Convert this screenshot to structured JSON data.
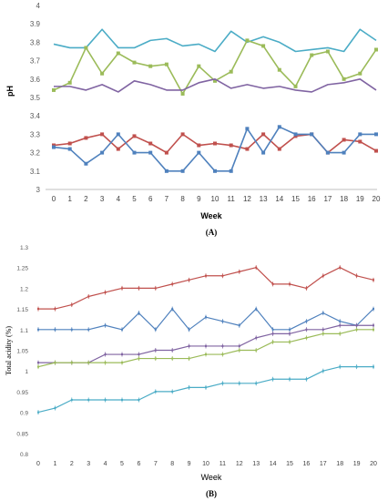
{
  "chart_data": [
    {
      "id": "A",
      "type": "line",
      "panel_label": "(A)",
      "xlabel": "Week",
      "ylabel": "pH",
      "ylim": [
        3,
        4
      ],
      "y_ticks": [
        "3",
        "3.1",
        "3.2",
        "3.3",
        "3.4",
        "3.5",
        "3.6",
        "3.7",
        "3.8",
        "3.9",
        "4"
      ],
      "x": [
        0,
        1,
        2,
        3,
        4,
        5,
        6,
        7,
        8,
        9,
        10,
        11,
        12,
        13,
        14,
        15,
        16,
        17,
        18,
        19,
        20
      ],
      "x_tick_labels": [
        "0",
        "1",
        "2",
        "3",
        "4",
        "5",
        "6",
        "7",
        "8",
        "9",
        "10",
        "11",
        "12",
        "13",
        "14",
        "15",
        "16",
        "17",
        "18",
        "19",
        "20"
      ],
      "grid": false,
      "legend": "none",
      "series": [
        {
          "color": "#4bacc6",
          "marker": false,
          "values": [
            3.79,
            3.77,
            3.77,
            3.87,
            3.77,
            3.77,
            3.81,
            3.82,
            3.78,
            3.79,
            3.75,
            3.86,
            3.8,
            3.83,
            3.8,
            3.75,
            3.76,
            3.77,
            3.75,
            3.87,
            3.81
          ]
        },
        {
          "color": "#9bbb59",
          "marker": true,
          "values": [
            3.54,
            3.58,
            3.77,
            3.63,
            3.74,
            3.69,
            3.67,
            3.68,
            3.52,
            3.67,
            3.59,
            3.64,
            3.81,
            3.78,
            3.65,
            3.56,
            3.73,
            3.75,
            3.6,
            3.63,
            3.76
          ]
        },
        {
          "color": "#8064a2",
          "marker": false,
          "values": [
            3.56,
            3.56,
            3.54,
            3.57,
            3.53,
            3.59,
            3.57,
            3.54,
            3.54,
            3.58,
            3.6,
            3.55,
            3.57,
            3.55,
            3.56,
            3.54,
            3.53,
            3.57,
            3.58,
            3.6,
            3.54
          ]
        },
        {
          "color": "#c0504d",
          "marker": true,
          "values": [
            3.24,
            3.25,
            3.28,
            3.3,
            3.22,
            3.29,
            3.25,
            3.2,
            3.3,
            3.24,
            3.25,
            3.24,
            3.22,
            3.3,
            3.22,
            3.29,
            3.3,
            3.2,
            3.27,
            3.26,
            3.21
          ]
        },
        {
          "color": "#4f81bd",
          "marker": true,
          "values": [
            3.23,
            3.22,
            3.14,
            3.2,
            3.3,
            3.2,
            3.2,
            3.1,
            3.1,
            3.2,
            3.1,
            3.1,
            3.33,
            3.2,
            3.34,
            3.3,
            3.3,
            3.2,
            3.2,
            3.3,
            3.3
          ]
        }
      ]
    },
    {
      "id": "B",
      "type": "line",
      "panel_label": "(B)",
      "xlabel": "Week",
      "ylabel": "Total acidity (%)",
      "ylim": [
        0.8,
        1.3
      ],
      "y_ticks": [
        "0.8",
        "0.85",
        "0.9",
        "0.95",
        "1",
        "1.05",
        "1.1",
        "1.15",
        "1.2",
        "1.25",
        "1.3"
      ],
      "x": [
        0,
        1,
        2,
        3,
        4,
        5,
        6,
        7,
        8,
        9,
        10,
        11,
        12,
        13,
        14,
        15,
        16,
        17,
        18,
        19,
        20
      ],
      "x_tick_labels": [
        "0",
        "1",
        "2",
        "3",
        "4",
        "5",
        "6",
        "7",
        "8",
        "9",
        "10",
        "11",
        "12",
        "13",
        "14",
        "15",
        "16",
        "17",
        "18",
        "19",
        "20"
      ],
      "grid": false,
      "legend": "none",
      "series": [
        {
          "color": "#c0504d",
          "values": [
            1.15,
            1.15,
            1.16,
            1.18,
            1.19,
            1.2,
            1.2,
            1.2,
            1.21,
            1.22,
            1.23,
            1.23,
            1.24,
            1.25,
            1.21,
            1.21,
            1.2,
            1.23,
            1.25,
            1.23,
            1.22
          ]
        },
        {
          "color": "#4f81bd",
          "values": [
            1.1,
            1.1,
            1.1,
            1.1,
            1.11,
            1.1,
            1.14,
            1.1,
            1.15,
            1.1,
            1.13,
            1.12,
            1.11,
            1.15,
            1.1,
            1.1,
            1.12,
            1.14,
            1.12,
            1.11,
            1.15
          ]
        },
        {
          "color": "#8064a2",
          "values": [
            1.02,
            1.02,
            1.02,
            1.02,
            1.04,
            1.04,
            1.04,
            1.05,
            1.05,
            1.06,
            1.06,
            1.06,
            1.06,
            1.08,
            1.09,
            1.09,
            1.1,
            1.1,
            1.11,
            1.11,
            1.11
          ]
        },
        {
          "color": "#9bbb59",
          "values": [
            1.01,
            1.02,
            1.02,
            1.02,
            1.02,
            1.02,
            1.03,
            1.03,
            1.03,
            1.03,
            1.04,
            1.04,
            1.05,
            1.05,
            1.07,
            1.07,
            1.08,
            1.09,
            1.09,
            1.1,
            1.1
          ]
        },
        {
          "color": "#4bacc6",
          "values": [
            0.9,
            0.91,
            0.93,
            0.93,
            0.93,
            0.93,
            0.93,
            0.95,
            0.95,
            0.96,
            0.96,
            0.97,
            0.97,
            0.97,
            0.98,
            0.98,
            0.98,
            1.0,
            1.01,
            1.01,
            1.01
          ]
        }
      ]
    }
  ]
}
